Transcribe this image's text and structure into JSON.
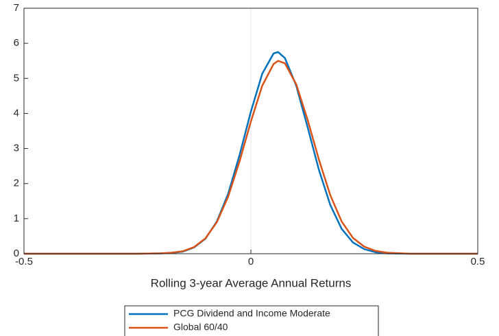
{
  "chart_data": {
    "type": "line",
    "xlabel": "Rolling 3-year Average Annual Returns",
    "x": [
      -0.5,
      -0.4,
      -0.3,
      -0.25,
      -0.2,
      -0.175,
      -0.15,
      -0.125,
      -0.1,
      -0.075,
      -0.05,
      -0.025,
      0,
      0.025,
      0.05,
      0.06,
      0.075,
      0.1,
      0.125,
      0.15,
      0.175,
      0.2,
      0.225,
      0.25,
      0.275,
      0.3,
      0.35,
      0.4,
      0.5
    ],
    "series": [
      {
        "name": "PCG Dividend and Income Moderate",
        "color": "#0072bd",
        "values": [
          0,
          0,
          0,
          0,
          0.01,
          0.02,
          0.06,
          0.18,
          0.43,
          0.92,
          1.71,
          2.81,
          4.05,
          5.13,
          5.71,
          5.75,
          5.58,
          4.79,
          3.61,
          2.39,
          1.39,
          0.71,
          0.32,
          0.13,
          0.04,
          0.01,
          0,
          0,
          0
        ]
      },
      {
        "name": "Global 60/40",
        "color": "#d95319",
        "values": [
          0,
          0,
          0,
          0,
          0.01,
          0.03,
          0.07,
          0.19,
          0.44,
          0.9,
          1.63,
          2.63,
          3.77,
          4.79,
          5.41,
          5.5,
          5.43,
          4.83,
          3.82,
          2.68,
          1.67,
          0.92,
          0.45,
          0.2,
          0.08,
          0.03,
          0,
          0,
          0
        ]
      }
    ],
    "xlim": [
      -0.5,
      0.5
    ],
    "xticks": [
      -0.5,
      0,
      0.5
    ],
    "ylim": [
      0,
      7
    ],
    "yticks": [
      0,
      1,
      2,
      3,
      4,
      5,
      6,
      7
    ],
    "xgrid": true,
    "legend": "bottom-outside"
  }
}
